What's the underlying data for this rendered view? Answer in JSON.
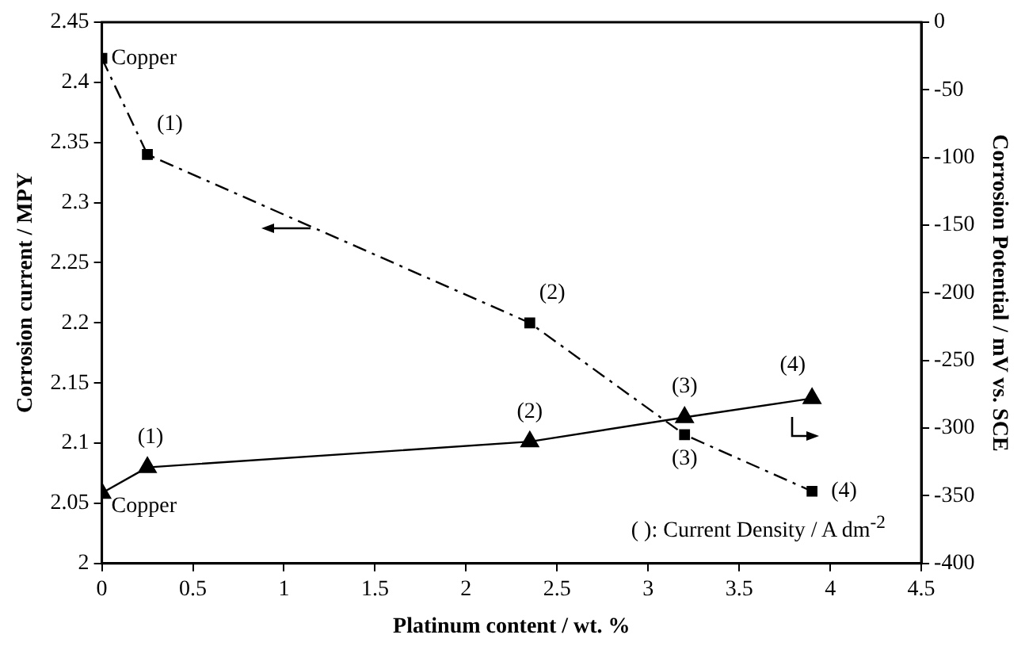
{
  "chart_data": {
    "type": "line",
    "xlabel": "Platinum content / wt. %",
    "ylabel": "Corrosion current / MPY",
    "y2label": "Corrosion Potential / mV vs. SCE",
    "x": [
      0,
      0.25,
      2.35,
      3.2,
      3.9
    ],
    "series": [
      {
        "color": "#000000",
        "values": [
          2.42,
          2.34,
          2.2,
          2.107,
          2.06
        ],
        "marker": "square",
        "line_style": "dashed"
      },
      {
        "color": "#000000",
        "values": [
          -348,
          -329,
          -310,
          -292,
          -278
        ],
        "axis": "y2",
        "marker": "triangle",
        "line_style": "solid"
      }
    ],
    "xlim": [
      0,
      4.5
    ],
    "xticks": [
      0,
      0.5,
      1,
      1.5,
      2,
      2.5,
      3,
      3.5,
      4,
      4.5
    ],
    "ylim": [
      2,
      2.45
    ],
    "yticks": [
      2,
      2.05,
      2.1,
      2.15,
      2.2,
      2.25,
      2.3,
      2.35,
      2.4,
      2.45
    ],
    "y2lim": [
      -400,
      0
    ],
    "y2ticks": [
      -400,
      -350,
      -300,
      -250,
      -200,
      -150,
      -100,
      -50,
      0
    ],
    "grid": false,
    "legend": false,
    "annotations": [
      {
        "text": "Copper",
        "x": 0,
        "y": 2.42
      },
      {
        "text": "(1)",
        "x": 0.25,
        "y": 2.34
      },
      {
        "text": "(2)",
        "x": 2.35,
        "y": 2.2
      },
      {
        "text": "(3)",
        "x": 3.2,
        "y": 2.107
      },
      {
        "text": "(4)",
        "x": 3.9,
        "y": 2.06
      },
      {
        "text": "Copper",
        "x": 0,
        "y": 2.058
      },
      {
        "text": "(1)",
        "x": 0.25,
        "y": 2.08
      },
      {
        "text": "(2)",
        "x": 2.35,
        "y": 2.101
      },
      {
        "text": "(3)",
        "x": 3.2,
        "y": 2.122
      },
      {
        "text": "(4)",
        "x": 3.9,
        "y": 2.137
      },
      "( ): Current Density / A dm$^{-2}$"
    ]
  }
}
